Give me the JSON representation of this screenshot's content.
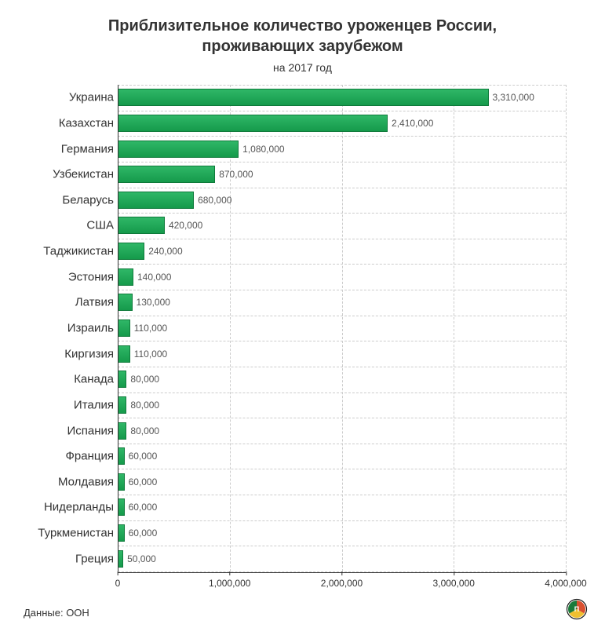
{
  "title_line1": "Приблизительное количество уроженцев России,",
  "title_line2": "проживающих зарубежом",
  "subtitle": "на 2017 год",
  "source": "Данные: ООН",
  "chart": {
    "type": "bar-horizontal",
    "xlim": [
      0,
      4000000
    ],
    "x_ticks": [
      {
        "value": 0,
        "label": "0"
      },
      {
        "value": 1000000,
        "label": "1,000,000"
      },
      {
        "value": 2000000,
        "label": "2,000,000"
      },
      {
        "value": 3000000,
        "label": "3,000,000"
      },
      {
        "value": 4000000,
        "label": "4,000,000"
      }
    ],
    "bar_fill_top": "#2fb767",
    "bar_fill_bottom": "#159a4b",
    "bar_border": "#0e7a3a",
    "grid_color": "#cccccc",
    "axis_color": "#333333",
    "background_color": "#ffffff",
    "label_fontsize": 15,
    "value_fontsize": 12,
    "tick_fontsize": 12,
    "title_fontsize": 20,
    "data": [
      {
        "country": "Украина",
        "value": 3310000,
        "label": "3,310,000"
      },
      {
        "country": "Казахстан",
        "value": 2410000,
        "label": "2,410,000"
      },
      {
        "country": "Германия",
        "value": 1080000,
        "label": "1,080,000"
      },
      {
        "country": "Узбекистан",
        "value": 870000,
        "label": "870,000"
      },
      {
        "country": "Беларусь",
        "value": 680000,
        "label": "680,000"
      },
      {
        "country": "США",
        "value": 420000,
        "label": "420,000"
      },
      {
        "country": "Таджикистан",
        "value": 240000,
        "label": "240,000"
      },
      {
        "country": "Эстония",
        "value": 140000,
        "label": "140,000"
      },
      {
        "country": "Латвия",
        "value": 130000,
        "label": "130,000"
      },
      {
        "country": "Израиль",
        "value": 110000,
        "label": "110,000"
      },
      {
        "country": "Киргизия",
        "value": 110000,
        "label": "110,000"
      },
      {
        "country": "Канада",
        "value": 80000,
        "label": "80,000"
      },
      {
        "country": "Италия",
        "value": 80000,
        "label": "80,000"
      },
      {
        "country": "Испания",
        "value": 80000,
        "label": "80,000"
      },
      {
        "country": "Франция",
        "value": 60000,
        "label": "60,000"
      },
      {
        "country": "Молдавия",
        "value": 60000,
        "label": "60,000"
      },
      {
        "country": "Нидерланды",
        "value": 60000,
        "label": "60,000"
      },
      {
        "country": "Туркменистан",
        "value": 60000,
        "label": "60,000"
      },
      {
        "country": "Греция",
        "value": 50000,
        "label": "50,000"
      }
    ]
  },
  "logo_colors": {
    "ring": "#1a1a1a",
    "top": "#d94f2f",
    "left": "#1a7a3a",
    "right": "#f0c030"
  }
}
